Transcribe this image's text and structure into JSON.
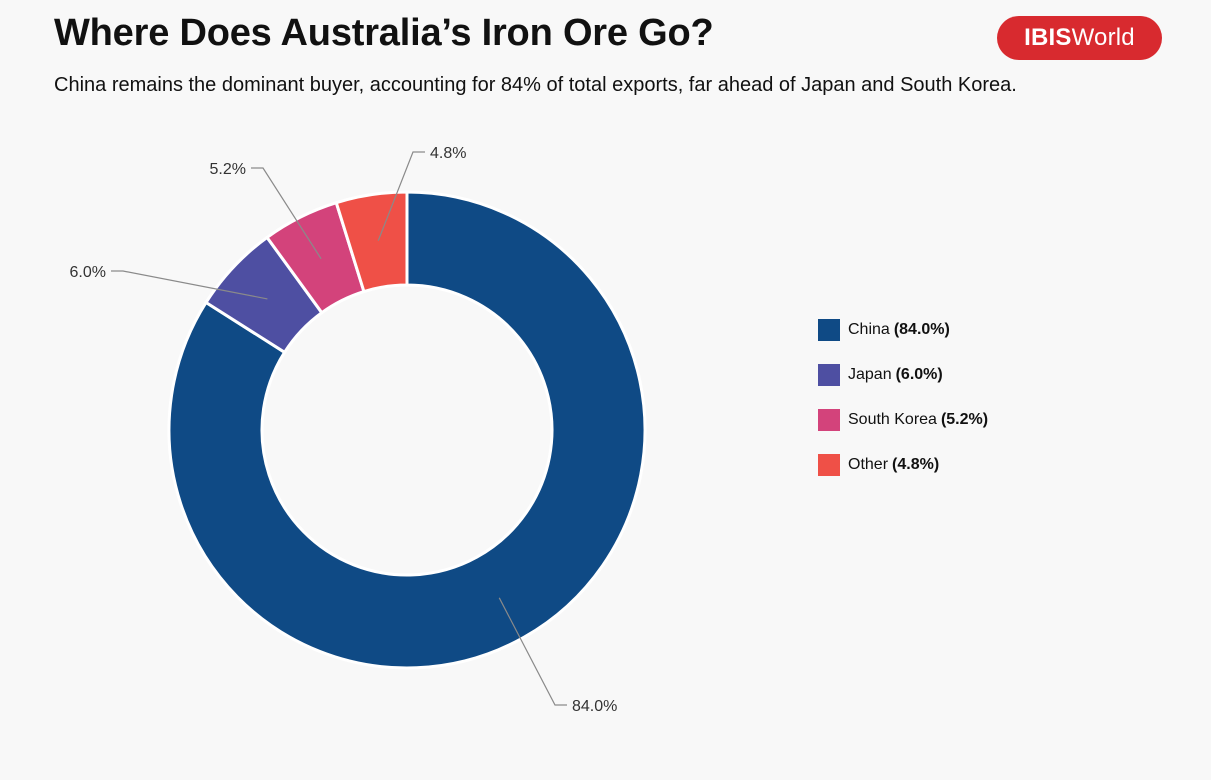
{
  "header": {
    "title": "Where Does Australia’s Iron Ore Go?",
    "subtitle": "China remains the dominant buyer, accounting for 84% of total exports, far ahead of Japan and South Korea.",
    "logo_bold": "IBIS",
    "logo_regular": "World"
  },
  "chart_data": {
    "type": "pie",
    "donut": true,
    "title": "Where Does Australia’s Iron Ore Go?",
    "subtitle": "China remains the dominant buyer, accounting for 84% of total exports, far ahead of Japan and South Korea.",
    "legend_position": "right",
    "slices": [
      {
        "name": "China",
        "value": 84.0,
        "label": "84.0%",
        "legend_pct": "(84.0%)",
        "color": "#0f4a85"
      },
      {
        "name": "Japan",
        "value": 6.0,
        "label": "6.0%",
        "legend_pct": "(6.0%)",
        "color": "#4e4fa2"
      },
      {
        "name": "South Korea",
        "value": 5.2,
        "label": "5.2%",
        "legend_pct": "(5.2%)",
        "color": "#d3437b"
      },
      {
        "name": "Other",
        "value": 4.8,
        "label": "4.8%",
        "legend_pct": "(4.8%)",
        "color": "#ef5047"
      }
    ]
  }
}
